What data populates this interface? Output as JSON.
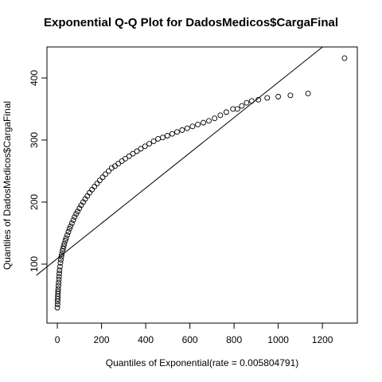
{
  "chart_data": {
    "type": "scatter",
    "title": "Exponential Q-Q Plot for DadosMedicos$CargaFinal",
    "xlabel": "Quantiles of Exponential(rate = 0.005804791)",
    "ylabel": "Quantiles of DadosMedicos$CargaFinal",
    "xlim": [
      -47,
      1358
    ],
    "ylim": [
      5,
      450
    ],
    "xticks": [
      0,
      200,
      400,
      600,
      800,
      1000,
      1200
    ],
    "yticks": [
      100,
      200,
      300,
      400
    ],
    "grid": false,
    "reference_line": {
      "intercept": 109,
      "slope": 0.284
    },
    "series": [
      {
        "x": [
          0,
          1,
          1,
          2,
          2,
          3,
          3,
          4,
          5,
          6,
          7,
          8,
          9,
          10,
          12,
          14,
          16,
          18,
          20,
          23,
          26,
          29,
          32,
          36,
          40,
          45,
          50,
          55,
          60,
          66,
          72,
          78,
          85,
          92,
          100,
          108,
          117,
          126,
          136,
          146,
          157,
          168,
          180,
          192,
          205,
          218,
          232,
          246,
          261,
          276,
          292,
          308,
          325,
          342,
          360,
          378,
          397,
          416,
          436,
          456,
          477,
          498,
          520,
          542,
          565,
          588,
          612,
          636,
          661,
          686,
          712,
          738,
          765,
          795,
          815,
          835,
          857,
          880,
          910,
          950,
          1000,
          1055,
          1135,
          1300
        ],
        "y": [
          30,
          35,
          40,
          44,
          48,
          52,
          56,
          60,
          65,
          70,
          75,
          80,
          85,
          90,
          96,
          102,
          107,
          112,
          116,
          121,
          125,
          129,
          133,
          138,
          142,
          147,
          152,
          157,
          161,
          166,
          171,
          176,
          181,
          185,
          190,
          195,
          200,
          205,
          210,
          215,
          220,
          225,
          230,
          235,
          240,
          245,
          250,
          255,
          258,
          262,
          266,
          270,
          274,
          278,
          282,
          286,
          290,
          294,
          298,
          302,
          304,
          307,
          310,
          313,
          316,
          319,
          322,
          325,
          328,
          331,
          335,
          340,
          345,
          350,
          350,
          355,
          360,
          363,
          365,
          368,
          370,
          372,
          375,
          432
        ]
      }
    ]
  }
}
